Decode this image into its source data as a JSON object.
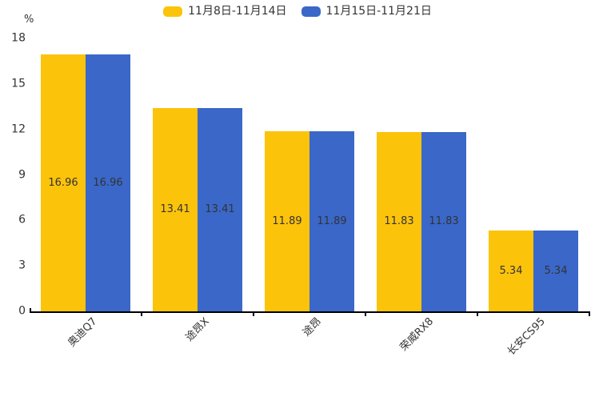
{
  "chart_data": {
    "type": "bar",
    "title": "",
    "unit_label": "%",
    "categories": [
      "奥迪Q7",
      "途昂X",
      "途昂",
      "荣威RX8",
      "长安CS95"
    ],
    "series": [
      {
        "name": "11月8日-11月14日",
        "color": "#fcc30b",
        "values": [
          16.96,
          13.41,
          11.89,
          11.83,
          5.34
        ]
      },
      {
        "name": "11月15日-11月21日",
        "color": "#3a67c8",
        "values": [
          16.96,
          13.41,
          11.89,
          11.83,
          5.34
        ]
      }
    ],
    "value_labels": [
      "16.96",
      "13.41",
      "11.89",
      "11.83",
      "5.34"
    ],
    "ylim": [
      0,
      18
    ],
    "yticks": [
      "0",
      "3",
      "6",
      "9",
      "12",
      "15",
      "18"
    ],
    "legend_position": "top-center",
    "grid": false,
    "value_label_position": "inside-center",
    "xlabel_rotation": -45
  },
  "colors": {
    "bar_yellow": "#fcc30b",
    "bar_blue": "#3a67c8",
    "axis": "#000000",
    "text": "#333333",
    "background": "#ffffff"
  }
}
